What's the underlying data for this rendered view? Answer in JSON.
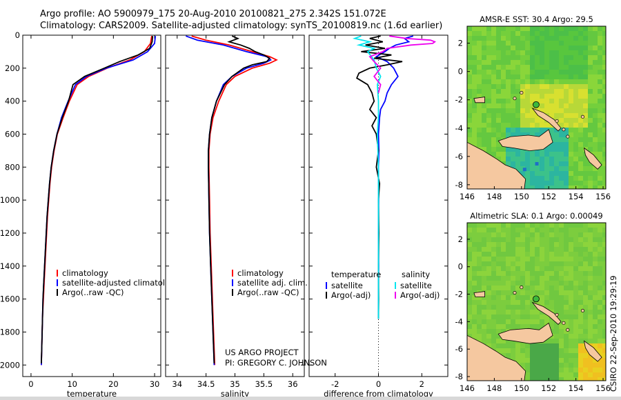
{
  "header": {
    "line1": "Argo profile: AO 5900979_175 20-Aug-2010 20100821_275 2.342S 151.072E",
    "line2": "Climatology: CARS2009. Satellite-adjusted climatology: synTS_20100819.nc (1.6d earlier)"
  },
  "side_stamp": "CSIRO 22-Sep-2010 19:29:19",
  "credit": {
    "line1": "US ARGO PROJECT",
    "line2": "PI: GREGORY C. JOHNSON"
  },
  "colors": {
    "climatology": "#ff0000",
    "satellite": "#0000ff",
    "argo": "#000000",
    "satellite_salinity": "#00e5ee",
    "argo_salinity_adj": "#ee00ee",
    "land": "#f5c8a0",
    "sea_base": "#6dcc3c"
  },
  "chart_data": [
    {
      "id": "temperature",
      "type": "line",
      "xlabel": "temperature",
      "ylabel": "",
      "xlim": [
        -2,
        31.5
      ],
      "ylim": [
        2070,
        0
      ],
      "xticks": [
        0,
        10,
        20,
        30
      ],
      "yticks": [
        0,
        200,
        400,
        600,
        800,
        1000,
        1200,
        1400,
        1600,
        1800,
        2000
      ],
      "legend": [
        "climatology",
        "satellite-adjusted climatolog",
        "Argo(..raw -QC)"
      ],
      "legend_position": "bottom-right",
      "series": [
        {
          "name": "climatology",
          "color": "#ff0000",
          "y": [
            5,
            50,
            100,
            150,
            200,
            250,
            300,
            400,
            500,
            600,
            700,
            800,
            900,
            1000,
            1100,
            1200,
            1300,
            1400,
            1500,
            1600,
            1700,
            1800,
            1900,
            2000
          ],
          "x": [
            29.3,
            29.0,
            27.5,
            24.0,
            18.5,
            14.0,
            11.2,
            9.3,
            7.8,
            6.4,
            5.6,
            5.0,
            4.6,
            4.3,
            4.0,
            3.8,
            3.6,
            3.4,
            3.2,
            3.0,
            2.8,
            2.7,
            2.6,
            2.5
          ]
        },
        {
          "name": "satellite-adjusted climatolog",
          "color": "#0000ff",
          "y": [
            5,
            50,
            100,
            150,
            200,
            250,
            300,
            400,
            500,
            600,
            700,
            800,
            900,
            1000,
            1100,
            1200,
            1300,
            1400,
            1500,
            1600,
            1700,
            1800,
            1900,
            2000
          ],
          "x": [
            30.2,
            30.0,
            28.3,
            24.8,
            18.3,
            13.5,
            10.8,
            9.0,
            7.4,
            6.3,
            5.5,
            4.9,
            4.5,
            4.2,
            3.9,
            3.7,
            3.5,
            3.3,
            3.1,
            2.9,
            2.8,
            2.7,
            2.6,
            2.5
          ]
        },
        {
          "name": "Argo(..raw -QC)",
          "color": "#000000",
          "y": [
            5,
            40,
            80,
            120,
            160,
            200,
            250,
            300,
            400,
            500,
            600,
            700,
            800,
            900,
            1000,
            1100,
            1200,
            1300,
            1400,
            1500,
            1600,
            1700,
            1800,
            1900,
            1990
          ],
          "x": [
            29.5,
            29.4,
            28.8,
            26.0,
            21.5,
            17.8,
            13.0,
            10.2,
            9.1,
            7.6,
            6.3,
            5.5,
            4.9,
            4.5,
            4.2,
            3.9,
            3.7,
            3.5,
            3.3,
            3.1,
            2.9,
            2.8,
            2.7,
            2.6,
            2.5
          ]
        }
      ]
    },
    {
      "id": "salinity",
      "type": "line",
      "xlabel": "salinity",
      "xlim": [
        33.8,
        36.2
      ],
      "ylim": [
        2070,
        0
      ],
      "xticks": [
        34,
        34.5,
        35,
        35.5,
        36
      ],
      "legend": [
        "climatology",
        "satellite adj. clim.",
        "Argo(..raw -QC)"
      ],
      "legend_position": "bottom-right",
      "series": [
        {
          "name": "climatology",
          "color": "#ff0000",
          "y": [
            5,
            30,
            60,
            100,
            130,
            150,
            170,
            200,
            250,
            300,
            400,
            500,
            600,
            700,
            800,
            1000,
            1200,
            1400,
            1600,
            1800,
            2000
          ],
          "x": [
            34.25,
            34.5,
            34.9,
            35.3,
            35.6,
            35.72,
            35.6,
            35.3,
            35.0,
            34.85,
            34.72,
            34.62,
            34.57,
            34.55,
            34.55,
            34.56,
            34.57,
            34.59,
            34.61,
            34.63,
            34.65
          ]
        },
        {
          "name": "satellite adj. clim.",
          "color": "#0000ff",
          "y": [
            5,
            30,
            60,
            100,
            130,
            150,
            170,
            200,
            250,
            300,
            400,
            500,
            600,
            700,
            800,
            1000,
            1200,
            1400,
            1600,
            1800,
            2000
          ],
          "x": [
            34.15,
            34.35,
            34.8,
            35.2,
            35.55,
            35.62,
            35.5,
            35.2,
            34.95,
            34.8,
            34.68,
            34.6,
            34.56,
            34.54,
            34.54,
            34.55,
            34.56,
            34.58,
            34.6,
            34.62,
            34.64
          ]
        },
        {
          "name": "Argo(..raw -QC)",
          "color": "#000000",
          "y": [
            5,
            20,
            40,
            60,
            80,
            100,
            120,
            140,
            160,
            180,
            200,
            250,
            300,
            400,
            500,
            600,
            700,
            800,
            1000,
            1200,
            1400,
            1600,
            1800,
            1990
          ],
          "x": [
            34.95,
            35.05,
            34.9,
            35.1,
            35.25,
            35.35,
            35.5,
            35.6,
            35.55,
            35.3,
            35.15,
            34.95,
            34.82,
            34.68,
            34.6,
            34.56,
            34.54,
            34.54,
            34.55,
            34.56,
            34.58,
            34.6,
            34.62,
            34.64
          ]
        }
      ]
    },
    {
      "id": "difference",
      "type": "line",
      "xlabel": "difference from climatology",
      "xlim": [
        -3.2,
        3.2
      ],
      "ylim": [
        2070,
        0
      ],
      "xticks": [
        -2,
        0,
        2
      ],
      "legend_columns": [
        {
          "header": "temperature",
          "items": [
            "satellite",
            "Argo(-adj)"
          ]
        },
        {
          "header": "salinity",
          "items": [
            "satellite",
            "Argo(-adj)"
          ]
        }
      ],
      "series": [
        {
          "name": "temperature satellite",
          "color": "#0000ff",
          "y": [
            5,
            20,
            40,
            60,
            80,
            100,
            130,
            160,
            200,
            250,
            300,
            350,
            400,
            450,
            500,
            600,
            700,
            800,
            1000,
            1200,
            1400,
            1600,
            1720
          ],
          "x": [
            1.6,
            1.2,
            1.4,
            0.8,
            0.5,
            0.3,
            -0.1,
            0.4,
            0.7,
            0.9,
            0.6,
            0.4,
            0.3,
            0.1,
            0.05,
            0.0,
            0.02,
            0.0,
            0.01,
            0.0,
            0.01,
            0.0,
            0.0
          ]
        },
        {
          "name": "temperature Argo(-adj)",
          "color": "#000000",
          "y": [
            5,
            20,
            40,
            60,
            80,
            100,
            120,
            140,
            160,
            180,
            200,
            230,
            260,
            300,
            350,
            400,
            450,
            500,
            550,
            600,
            700,
            800,
            900,
            1000,
            1200,
            1400,
            1600,
            1720
          ],
          "x": [
            0.1,
            -0.4,
            0.2,
            -0.6,
            0.3,
            -0.8,
            0.6,
            -0.2,
            1.1,
            0.4,
            -0.4,
            -0.9,
            -1.0,
            -0.5,
            -0.3,
            -0.2,
            -0.4,
            -0.1,
            -0.3,
            -0.1,
            0.0,
            -0.1,
            0.05,
            0.0,
            0.02,
            0.0,
            0.01,
            0.0
          ]
        },
        {
          "name": "salinity satellite",
          "color": "#00e5ee",
          "y": [
            5,
            20,
            40,
            60,
            80,
            100,
            150,
            200,
            250,
            300,
            400,
            500,
            600,
            800,
            1000,
            1200,
            1400,
            1600,
            1720
          ],
          "x": [
            -0.8,
            -1.1,
            -0.4,
            -0.9,
            -0.2,
            -0.5,
            -0.2,
            -0.1,
            0.1,
            -0.05,
            0.0,
            0.0,
            -0.05,
            0.0,
            0.0,
            0.0,
            0.0,
            0.0,
            0.0
          ]
        },
        {
          "name": "salinity Argo(-adj)",
          "color": "#ee00ee",
          "y": [
            5,
            20,
            30,
            40,
            50,
            60,
            80,
            100,
            130,
            160,
            200,
            250,
            300,
            350
          ],
          "x": [
            0.5,
            1.3,
            2.4,
            2.6,
            2.5,
            1.5,
            0.4,
            0.2,
            -0.4,
            -0.2,
            0.1,
            -0.2,
            0.1,
            0.0
          ]
        }
      ]
    },
    {
      "id": "sst_map",
      "type": "heatmap",
      "title": "AMSR-E SST: 30.4  Argo: 29.5",
      "xlim": [
        146,
        156.2
      ],
      "ylim": [
        -8.3,
        3.2
      ],
      "xticks": [
        146,
        148,
        150,
        152,
        154,
        156
      ],
      "yticks": [
        2,
        0,
        -2,
        -4,
        -6,
        -8
      ],
      "marker": {
        "lon": 151.072,
        "lat": -2.342
      }
    },
    {
      "id": "sla_map",
      "type": "heatmap",
      "title": "Altimetric SLA: 0.1  Argo: 0.00049",
      "xlim": [
        146,
        156.2
      ],
      "ylim": [
        -8.3,
        3.2
      ],
      "xticks": [
        146,
        148,
        150,
        152,
        154,
        156
      ],
      "yticks": [
        2,
        0,
        -2,
        -4,
        -6,
        -8
      ],
      "marker": {
        "lon": 151.072,
        "lat": -2.342
      }
    }
  ]
}
